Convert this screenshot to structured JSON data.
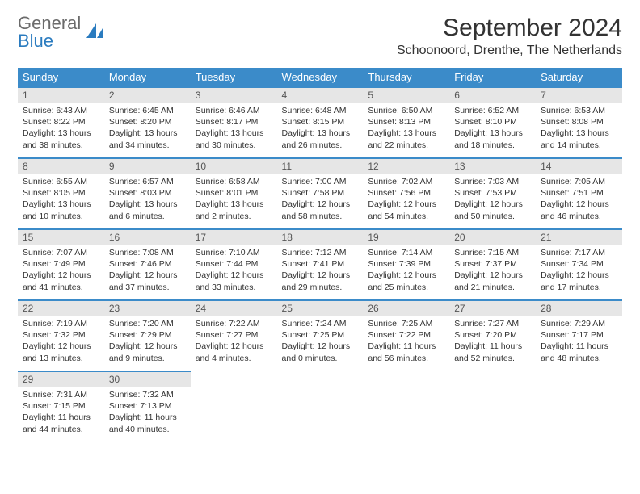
{
  "logo": {
    "text_gray": "General",
    "text_blue": "Blue"
  },
  "title": "September 2024",
  "location": "Schoonoord, Drenthe, The Netherlands",
  "colors": {
    "header_bg": "#3b8bc9",
    "header_text": "#ffffff",
    "daynum_bg": "#e6e6e6",
    "row_border": "#3b8bc9",
    "body_text": "#333333",
    "logo_gray": "#6b6b6b",
    "logo_blue": "#2a7bbf"
  },
  "typography": {
    "title_fontsize": 30,
    "location_fontsize": 16,
    "weekday_fontsize": 13,
    "daynum_fontsize": 12,
    "cell_fontsize": 10.5
  },
  "weekdays": [
    "Sunday",
    "Monday",
    "Tuesday",
    "Wednesday",
    "Thursday",
    "Friday",
    "Saturday"
  ],
  "weeks": [
    [
      {
        "n": "1",
        "sunrise": "6:43 AM",
        "sunset": "8:22 PM",
        "daylight": "13 hours and 38 minutes."
      },
      {
        "n": "2",
        "sunrise": "6:45 AM",
        "sunset": "8:20 PM",
        "daylight": "13 hours and 34 minutes."
      },
      {
        "n": "3",
        "sunrise": "6:46 AM",
        "sunset": "8:17 PM",
        "daylight": "13 hours and 30 minutes."
      },
      {
        "n": "4",
        "sunrise": "6:48 AM",
        "sunset": "8:15 PM",
        "daylight": "13 hours and 26 minutes."
      },
      {
        "n": "5",
        "sunrise": "6:50 AM",
        "sunset": "8:13 PM",
        "daylight": "13 hours and 22 minutes."
      },
      {
        "n": "6",
        "sunrise": "6:52 AM",
        "sunset": "8:10 PM",
        "daylight": "13 hours and 18 minutes."
      },
      {
        "n": "7",
        "sunrise": "6:53 AM",
        "sunset": "8:08 PM",
        "daylight": "13 hours and 14 minutes."
      }
    ],
    [
      {
        "n": "8",
        "sunrise": "6:55 AM",
        "sunset": "8:05 PM",
        "daylight": "13 hours and 10 minutes."
      },
      {
        "n": "9",
        "sunrise": "6:57 AM",
        "sunset": "8:03 PM",
        "daylight": "13 hours and 6 minutes."
      },
      {
        "n": "10",
        "sunrise": "6:58 AM",
        "sunset": "8:01 PM",
        "daylight": "13 hours and 2 minutes."
      },
      {
        "n": "11",
        "sunrise": "7:00 AM",
        "sunset": "7:58 PM",
        "daylight": "12 hours and 58 minutes."
      },
      {
        "n": "12",
        "sunrise": "7:02 AM",
        "sunset": "7:56 PM",
        "daylight": "12 hours and 54 minutes."
      },
      {
        "n": "13",
        "sunrise": "7:03 AM",
        "sunset": "7:53 PM",
        "daylight": "12 hours and 50 minutes."
      },
      {
        "n": "14",
        "sunrise": "7:05 AM",
        "sunset": "7:51 PM",
        "daylight": "12 hours and 46 minutes."
      }
    ],
    [
      {
        "n": "15",
        "sunrise": "7:07 AM",
        "sunset": "7:49 PM",
        "daylight": "12 hours and 41 minutes."
      },
      {
        "n": "16",
        "sunrise": "7:08 AM",
        "sunset": "7:46 PM",
        "daylight": "12 hours and 37 minutes."
      },
      {
        "n": "17",
        "sunrise": "7:10 AM",
        "sunset": "7:44 PM",
        "daylight": "12 hours and 33 minutes."
      },
      {
        "n": "18",
        "sunrise": "7:12 AM",
        "sunset": "7:41 PM",
        "daylight": "12 hours and 29 minutes."
      },
      {
        "n": "19",
        "sunrise": "7:14 AM",
        "sunset": "7:39 PM",
        "daylight": "12 hours and 25 minutes."
      },
      {
        "n": "20",
        "sunrise": "7:15 AM",
        "sunset": "7:37 PM",
        "daylight": "12 hours and 21 minutes."
      },
      {
        "n": "21",
        "sunrise": "7:17 AM",
        "sunset": "7:34 PM",
        "daylight": "12 hours and 17 minutes."
      }
    ],
    [
      {
        "n": "22",
        "sunrise": "7:19 AM",
        "sunset": "7:32 PM",
        "daylight": "12 hours and 13 minutes."
      },
      {
        "n": "23",
        "sunrise": "7:20 AM",
        "sunset": "7:29 PM",
        "daylight": "12 hours and 9 minutes."
      },
      {
        "n": "24",
        "sunrise": "7:22 AM",
        "sunset": "7:27 PM",
        "daylight": "12 hours and 4 minutes."
      },
      {
        "n": "25",
        "sunrise": "7:24 AM",
        "sunset": "7:25 PM",
        "daylight": "12 hours and 0 minutes."
      },
      {
        "n": "26",
        "sunrise": "7:25 AM",
        "sunset": "7:22 PM",
        "daylight": "11 hours and 56 minutes."
      },
      {
        "n": "27",
        "sunrise": "7:27 AM",
        "sunset": "7:20 PM",
        "daylight": "11 hours and 52 minutes."
      },
      {
        "n": "28",
        "sunrise": "7:29 AM",
        "sunset": "7:17 PM",
        "daylight": "11 hours and 48 minutes."
      }
    ],
    [
      {
        "n": "29",
        "sunrise": "7:31 AM",
        "sunset": "7:15 PM",
        "daylight": "11 hours and 44 minutes."
      },
      {
        "n": "30",
        "sunrise": "7:32 AM",
        "sunset": "7:13 PM",
        "daylight": "11 hours and 40 minutes."
      },
      null,
      null,
      null,
      null,
      null
    ]
  ],
  "labels": {
    "sunrise": "Sunrise: ",
    "sunset": "Sunset: ",
    "daylight": "Daylight: "
  }
}
